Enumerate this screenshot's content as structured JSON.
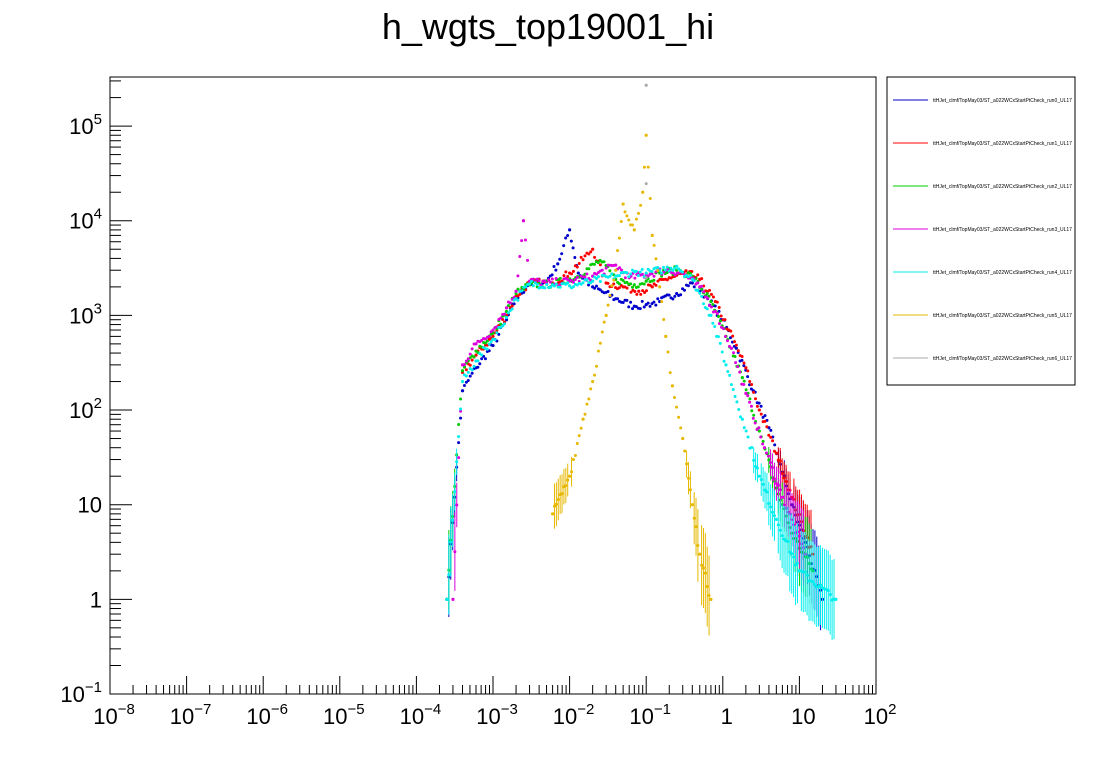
{
  "chart_data": {
    "type": "scatter",
    "title": "h_wgts_top19001_hi",
    "xlabel": "",
    "ylabel": "",
    "x_scale": "log",
    "y_scale": "log",
    "xlim": [
      1e-08,
      100
    ],
    "ylim": [
      0.1,
      330000
    ],
    "x_ticks": [
      {
        "value": 1e-08,
        "base": "10",
        "exp": "−8",
        "text": ""
      },
      {
        "value": 1e-07,
        "base": "10",
        "exp": "−7",
        "text": ""
      },
      {
        "value": 1e-06,
        "base": "10",
        "exp": "−6",
        "text": ""
      },
      {
        "value": 1e-05,
        "base": "10",
        "exp": "−5",
        "text": ""
      },
      {
        "value": 0.0001,
        "base": "10",
        "exp": "−4",
        "text": ""
      },
      {
        "value": 0.001,
        "base": "10",
        "exp": "−3",
        "text": ""
      },
      {
        "value": 0.01,
        "base": "10",
        "exp": "−2",
        "text": ""
      },
      {
        "value": 0.1,
        "base": "10",
        "exp": "−1",
        "text": ""
      },
      {
        "value": 1,
        "base": "",
        "exp": "",
        "text": "1"
      },
      {
        "value": 10,
        "base": "",
        "exp": "",
        "text": "10"
      },
      {
        "value": 100,
        "base": "10",
        "exp": "2",
        "text": ""
      }
    ],
    "y_ticks": [
      {
        "value": 0.1,
        "base": "10",
        "exp": "−1",
        "text": ""
      },
      {
        "value": 1,
        "base": "",
        "exp": "",
        "text": "1"
      },
      {
        "value": 10,
        "base": "",
        "exp": "",
        "text": "10"
      },
      {
        "value": 100,
        "base": "10",
        "exp": "2",
        "text": ""
      },
      {
        "value": 1000,
        "base": "10",
        "exp": "3",
        "text": ""
      },
      {
        "value": 10000,
        "base": "10",
        "exp": "4",
        "text": ""
      },
      {
        "value": 100000,
        "base": "10",
        "exp": "5",
        "text": ""
      }
    ],
    "grid": false,
    "legend_position": "right",
    "series": [
      {
        "name": "ttHJet_clmf/TopMay03/ST_a022WCxStartPtCheck_run0_UL17",
        "color": "#0000cc",
        "points": [
          [
            0.00025,
            1
          ],
          [
            0.0004,
            160
          ],
          [
            0.0006,
            280
          ],
          [
            0.001,
            480
          ],
          [
            0.0015,
            900
          ],
          [
            0.002,
            1500
          ],
          [
            0.003,
            2200
          ],
          [
            0.005,
            2300
          ],
          [
            0.007,
            3500
          ],
          [
            0.01,
            8000
          ],
          [
            0.013,
            2800
          ],
          [
            0.02,
            2000
          ],
          [
            0.04,
            1500
          ],
          [
            0.07,
            1250
          ],
          [
            0.1,
            1300
          ],
          [
            0.15,
            1400
          ],
          [
            0.25,
            1700
          ],
          [
            0.4,
            2200
          ],
          [
            0.6,
            1600
          ],
          [
            1.0,
            900
          ],
          [
            1.5,
            450
          ],
          [
            2.5,
            160
          ],
          [
            4,
            65
          ],
          [
            6,
            22
          ],
          [
            8,
            10
          ],
          [
            12,
            4
          ],
          [
            20,
            1
          ]
        ]
      },
      {
        "name": "ttHJet_clmf/TopMay03/ST_a022WCxStartPtCheck_run1_UL17",
        "color": "#ff0000",
        "points": [
          [
            0.0004,
            250
          ],
          [
            0.0006,
            380
          ],
          [
            0.001,
            600
          ],
          [
            0.0015,
            1000
          ],
          [
            0.002,
            1600
          ],
          [
            0.003,
            2200
          ],
          [
            0.006,
            2200
          ],
          [
            0.01,
            2800
          ],
          [
            0.02,
            5000
          ],
          [
            0.03,
            2200
          ],
          [
            0.05,
            2000
          ],
          [
            0.08,
            1800
          ],
          [
            0.12,
            2000
          ],
          [
            0.2,
            2500
          ],
          [
            0.35,
            2800
          ],
          [
            0.5,
            2400
          ],
          [
            0.8,
            1400
          ],
          [
            1.2,
            700
          ],
          [
            2,
            280
          ],
          [
            3,
            100
          ],
          [
            5,
            35
          ],
          [
            8,
            12
          ],
          [
            15,
            3
          ]
        ]
      },
      {
        "name": "ttHJet_clmf/TopMay03/ST_a022WCxStartPtCheck_run2_UL17",
        "color": "#00cc00",
        "points": [
          [
            0.00025,
            1
          ],
          [
            0.0004,
            260
          ],
          [
            0.0006,
            420
          ],
          [
            0.001,
            650
          ],
          [
            0.0015,
            1100
          ],
          [
            0.002,
            1700
          ],
          [
            0.003,
            2100
          ],
          [
            0.006,
            2150
          ],
          [
            0.012,
            2500
          ],
          [
            0.025,
            3800
          ],
          [
            0.04,
            2400
          ],
          [
            0.07,
            2100
          ],
          [
            0.1,
            2300
          ],
          [
            0.15,
            2800
          ],
          [
            0.25,
            3000
          ],
          [
            0.4,
            2600
          ],
          [
            0.7,
            1400
          ],
          [
            1.1,
            600
          ],
          [
            1.8,
            220
          ],
          [
            3,
            60
          ],
          [
            5,
            15
          ],
          [
            8,
            5
          ],
          [
            15,
            2
          ]
        ]
      },
      {
        "name": "ttHJet_clmf/TopMay03/ST_a022WCxStartPtCheck_run3_UL17",
        "color": "#dd00dd",
        "points": [
          [
            0.0003,
            1
          ],
          [
            0.0004,
            300
          ],
          [
            0.0006,
            500
          ],
          [
            0.001,
            700
          ],
          [
            0.0015,
            1200
          ],
          [
            0.002,
            1800
          ],
          [
            0.0025,
            10000
          ],
          [
            0.003,
            2300
          ],
          [
            0.005,
            2200
          ],
          [
            0.01,
            2300
          ],
          [
            0.02,
            2600
          ],
          [
            0.04,
            3400
          ],
          [
            0.06,
            2500
          ],
          [
            0.1,
            2700
          ],
          [
            0.18,
            3000
          ],
          [
            0.3,
            2800
          ],
          [
            0.5,
            2000
          ],
          [
            0.8,
            1100
          ],
          [
            1.3,
            450
          ],
          [
            2,
            150
          ],
          [
            3.5,
            40
          ],
          [
            6,
            12
          ],
          [
            12,
            3
          ]
        ]
      },
      {
        "name": "ttHJet_clmf/TopMay03/ST_a022WCxStartPtCheck_run4_UL17",
        "color": "#00eeee",
        "points": [
          [
            0.00025,
            1
          ],
          [
            0.0004,
            200
          ],
          [
            0.0006,
            330
          ],
          [
            0.001,
            560
          ],
          [
            0.0015,
            950
          ],
          [
            0.002,
            1500
          ],
          [
            0.003,
            2150
          ],
          [
            0.006,
            2100
          ],
          [
            0.01,
            2050
          ],
          [
            0.02,
            2300
          ],
          [
            0.04,
            2600
          ],
          [
            0.07,
            2900
          ],
          [
            0.1,
            2800
          ],
          [
            0.15,
            3000
          ],
          [
            0.25,
            3300
          ],
          [
            0.4,
            2400
          ],
          [
            0.7,
            1000
          ],
          [
            1.1,
            300
          ],
          [
            1.8,
            80
          ],
          [
            3,
            20
          ],
          [
            5,
            7
          ],
          [
            10,
            2
          ],
          [
            30,
            1
          ]
        ]
      },
      {
        "name": "ttHJet_clmf/TopMay03/ST_a022WCxStartPtCheck_run5_UL17",
        "color": "#e6b800",
        "points": [
          [
            0.006,
            8
          ],
          [
            0.01,
            20
          ],
          [
            0.015,
            80
          ],
          [
            0.02,
            200
          ],
          [
            0.03,
            1000
          ],
          [
            0.04,
            3000
          ],
          [
            0.05,
            15000
          ],
          [
            0.07,
            8000
          ],
          [
            0.09,
            20000
          ],
          [
            0.1,
            80000
          ],
          [
            0.12,
            7000
          ],
          [
            0.15,
            2000
          ],
          [
            0.18,
            600
          ],
          [
            0.22,
            180
          ],
          [
            0.3,
            50
          ],
          [
            0.4,
            10
          ],
          [
            0.5,
            3
          ],
          [
            0.7,
            1
          ]
        ]
      },
      {
        "name": "ttHJet_clmf/TopMay03/ST_a022WCxStartPtCheck_run6_UL17",
        "color": "#aaaaaa",
        "points": [
          [
            0.1,
            270000
          ],
          [
            0.1,
            2500
          ]
        ]
      }
    ]
  }
}
